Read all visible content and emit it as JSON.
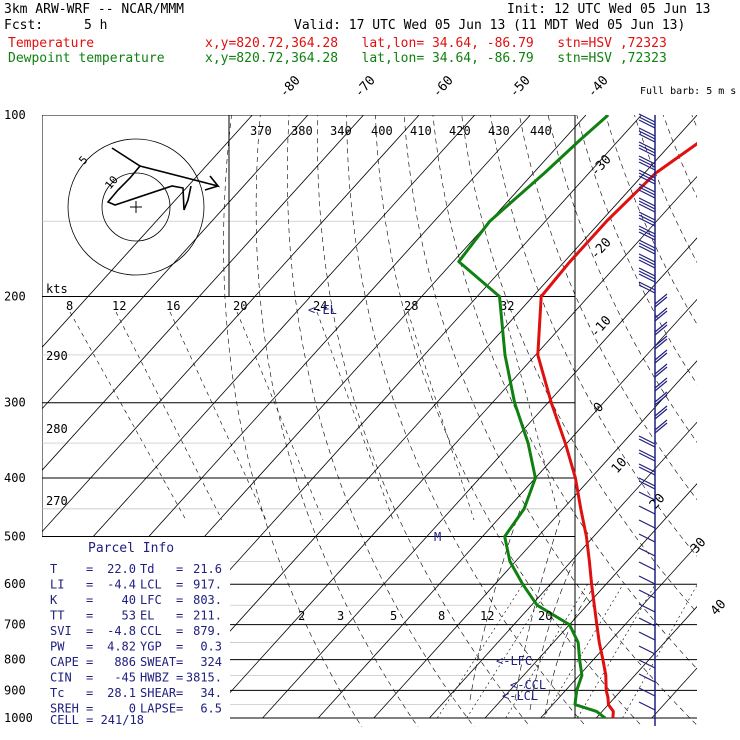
{
  "header": {
    "model": "3km ARW-WRF -- NCAR/MMM",
    "init": "Init: 12 UTC Wed 05 Jun 13",
    "fcst_label": "Fcst:",
    "fcst_value": "5 h",
    "valid": "Valid: 17 UTC Wed 05 Jun 13 (11 MDT Wed 05 Jun 13)",
    "temp_label": "Temperature",
    "temp_loc": "x,y=820.72,364.28   lat,lon= 34.64, -86.79   stn=HSV ,72323",
    "dew_label": "Dewpoint temperature",
    "dew_loc": "x,y=820.72,364.28   lat,lon= 34.64, -86.79   stn=HSV ,72323"
  },
  "colors": {
    "temperature": "#e01010",
    "dewpoint": "#108010",
    "wind": "#202080",
    "parcel": "#202080"
  },
  "chart_data": {
    "type": "line",
    "title": "",
    "y_axis": {
      "label": "",
      "ticks": [
        100,
        200,
        300,
        400,
        500,
        600,
        700,
        800,
        900,
        1000
      ]
    },
    "isotherm_labels": [
      "-80",
      "-70",
      "-60",
      "-50",
      "-40",
      "-30",
      "-20",
      "-10",
      "0",
      "10",
      "20",
      "30",
      "40"
    ],
    "theta_labels": [
      "370",
      "380",
      "340",
      "400",
      "410",
      "420",
      "430",
      "440",
      "290",
      "280",
      "270"
    ],
    "mixing_ratio_labels": [
      "2",
      "3",
      "5",
      "8",
      "12",
      "20"
    ],
    "hodograph_speed_labels": [
      "8",
      "12",
      "16",
      "20",
      "24",
      "28",
      "32"
    ],
    "hodograph_units": "kts",
    "hodograph_rings": [
      "5",
      "10"
    ],
    "barb_legend": "Full barb: 5 m s",
    "markers": [
      "<-EL",
      "M",
      "<-LFC",
      "<-CCL",
      "<-LCL"
    ],
    "series": [
      {
        "name": "Temperature",
        "points": [
          [
            1000,
            23
          ],
          [
            975,
            22
          ],
          [
            950,
            20
          ],
          [
            925,
            18.8
          ],
          [
            900,
            17.3
          ],
          [
            850,
            14.8
          ],
          [
            800,
            11.7
          ],
          [
            750,
            8.3
          ],
          [
            700,
            4.9
          ],
          [
            650,
            1.3
          ],
          [
            600,
            -2.6
          ],
          [
            550,
            -6.7
          ],
          [
            500,
            -11.3
          ],
          [
            450,
            -16.8
          ],
          [
            400,
            -22.8
          ],
          [
            350,
            -30.3
          ],
          [
            300,
            -39.4
          ],
          [
            250,
            -49.6
          ],
          [
            200,
            -58.5
          ],
          [
            175,
            -59
          ],
          [
            150,
            -59
          ],
          [
            125,
            -58
          ],
          [
            110,
            -55
          ],
          [
            100,
            -52
          ]
        ]
      },
      {
        "name": "Dewpoint temperature",
        "points": [
          [
            1000,
            21.6
          ],
          [
            975,
            19
          ],
          [
            950,
            14
          ],
          [
            925,
            13
          ],
          [
            900,
            12
          ],
          [
            850,
            10.5
          ],
          [
            800,
            7.5
          ],
          [
            750,
            4.5
          ],
          [
            700,
            0
          ],
          [
            650,
            -9
          ],
          [
            600,
            -15
          ],
          [
            550,
            -21
          ],
          [
            500,
            -26
          ],
          [
            450,
            -27
          ],
          [
            400,
            -30
          ],
          [
            350,
            -37
          ],
          [
            300,
            -46
          ],
          [
            250,
            -55.5
          ],
          [
            200,
            -66
          ],
          [
            175,
            -79
          ],
          [
            150,
            -80
          ],
          [
            125,
            -78
          ],
          [
            110,
            -77
          ],
          [
            100,
            -76
          ]
        ]
      }
    ]
  },
  "parcel": {
    "title": "Parcel Info",
    "rows": [
      {
        "k1": "T",
        "v1": "22.0",
        "k2": "Td",
        "v2": "21.6"
      },
      {
        "k1": "LI",
        "v1": "-4.4",
        "k2": "LCL",
        "v2": "917."
      },
      {
        "k1": "K",
        "v1": "40",
        "k2": "LFC",
        "v2": "803."
      },
      {
        "k1": "TT",
        "v1": "53",
        "k2": "EL",
        "v2": "211."
      },
      {
        "k1": "SVI",
        "v1": "-4.8",
        "k2": "CCL",
        "v2": "879."
      },
      {
        "k1": "PW",
        "v1": "4.82",
        "k2": "YGP",
        "v2": "0.3"
      },
      {
        "k1": "CAPE",
        "v1": "886",
        "k2": "SWEAT",
        "v2": "324"
      },
      {
        "k1": "CIN",
        "v1": "-45",
        "k2": "HWBZ",
        "v2": "3815."
      },
      {
        "k1": "Tc",
        "v1": "28.1",
        "k2": "SHEAR",
        "v2": "34."
      },
      {
        "k1": "SREH",
        "v1": "0",
        "k2": "LAPSE",
        "v2": "6.5"
      }
    ],
    "cell_label": "CELL = 241/18"
  }
}
